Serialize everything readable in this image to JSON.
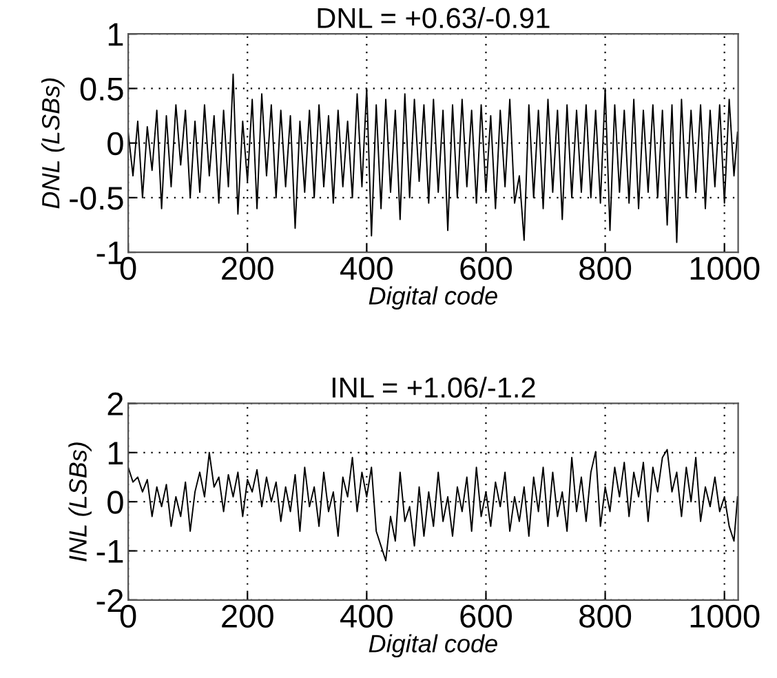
{
  "chart_data": [
    {
      "type": "line",
      "title": "DNL = +0.63/-0.91",
      "xlabel": "Digital code",
      "ylabel": "DNL (LSBs)",
      "xlim": [
        0,
        1023
      ],
      "xticks": [
        0,
        200,
        400,
        600,
        800,
        1000
      ],
      "ylim": [
        -1,
        1
      ],
      "yticks": [
        -1,
        -0.5,
        0,
        0.5,
        1
      ],
      "grid": true,
      "line_style": "solid",
      "marker": "none",
      "series": [
        {
          "color": "#000000",
          "x": [
            0,
            8,
            16,
            24,
            32,
            40,
            48,
            56,
            64,
            72,
            80,
            88,
            96,
            104,
            112,
            120,
            128,
            136,
            144,
            152,
            160,
            168,
            176,
            184,
            192,
            200,
            208,
            216,
            224,
            232,
            240,
            248,
            256,
            264,
            272,
            280,
            288,
            296,
            304,
            312,
            320,
            328,
            336,
            344,
            352,
            360,
            368,
            376,
            384,
            392,
            400,
            408,
            416,
            424,
            432,
            440,
            448,
            456,
            464,
            472,
            480,
            488,
            496,
            504,
            512,
            520,
            528,
            536,
            544,
            552,
            560,
            568,
            576,
            584,
            592,
            600,
            608,
            616,
            624,
            632,
            640,
            648,
            656,
            664,
            672,
            680,
            688,
            696,
            704,
            712,
            720,
            728,
            736,
            744,
            752,
            760,
            768,
            776,
            784,
            792,
            800,
            808,
            816,
            824,
            832,
            840,
            848,
            856,
            864,
            872,
            880,
            888,
            896,
            904,
            912,
            920,
            928,
            936,
            944,
            952,
            960,
            968,
            976,
            984,
            992,
            1000,
            1008,
            1016,
            1022
          ],
          "values": [
            0.1,
            -0.3,
            0.2,
            -0.5,
            0.15,
            -0.25,
            0.3,
            -0.6,
            0.25,
            -0.4,
            0.35,
            -0.2,
            0.3,
            -0.5,
            0.2,
            -0.45,
            0.35,
            -0.3,
            0.25,
            -0.55,
            0.3,
            -0.4,
            0.63,
            -0.65,
            0.2,
            -0.35,
            0.4,
            -0.6,
            0.45,
            -0.3,
            0.35,
            -0.5,
            0.3,
            -0.4,
            0.25,
            -0.78,
            0.2,
            -0.45,
            0.3,
            -0.5,
            0.35,
            -0.4,
            0.25,
            -0.55,
            0.3,
            -0.4,
            0.2,
            -0.5,
            0.45,
            -0.4,
            0.5,
            -0.85,
            0.35,
            -0.6,
            0.4,
            -0.45,
            0.3,
            -0.7,
            0.45,
            -0.5,
            0.4,
            -0.35,
            0.35,
            -0.55,
            0.4,
            -0.45,
            0.3,
            -0.8,
            0.35,
            -0.5,
            0.4,
            -0.4,
            0.3,
            -0.55,
            0.35,
            -0.45,
            0.25,
            -0.6,
            0.3,
            -0.4,
            0.4,
            -0.55,
            -0.3,
            -0.89,
            0.35,
            -0.5,
            0.3,
            -0.6,
            0.4,
            -0.45,
            0.3,
            -0.7,
            0.35,
            -0.5,
            0.3,
            -0.45,
            0.35,
            -0.5,
            0.3,
            -0.55,
            0.5,
            -0.8,
            0.35,
            -0.45,
            0.3,
            -0.55,
            0.4,
            -0.6,
            0.3,
            -0.45,
            0.35,
            -0.5,
            0.3,
            -0.75,
            0.35,
            -0.91,
            0.4,
            -0.5,
            0.3,
            -0.45,
            0.35,
            -0.6,
            0.3,
            -0.4,
            0.35,
            -0.55,
            0.4,
            -0.3,
            0.1
          ]
        }
      ]
    },
    {
      "type": "line",
      "title": "INL = +1.06/-1.2",
      "xlabel": "Digital code",
      "ylabel": "INL (LSBs)",
      "xlim": [
        0,
        1023
      ],
      "xticks": [
        0,
        200,
        400,
        600,
        800,
        1000
      ],
      "ylim": [
        -2,
        2
      ],
      "yticks": [
        -2,
        -1,
        0,
        1,
        2
      ],
      "grid": true,
      "line_style": "solid",
      "marker": "none",
      "series": [
        {
          "color": "#000000",
          "x": [
            0,
            8,
            16,
            24,
            32,
            40,
            48,
            56,
            64,
            72,
            80,
            88,
            96,
            104,
            112,
            120,
            128,
            136,
            144,
            152,
            160,
            168,
            176,
            184,
            192,
            200,
            208,
            216,
            224,
            232,
            240,
            248,
            256,
            264,
            272,
            280,
            288,
            296,
            304,
            312,
            320,
            328,
            336,
            344,
            352,
            360,
            368,
            376,
            384,
            392,
            400,
            408,
            416,
            424,
            432,
            440,
            448,
            456,
            464,
            472,
            480,
            488,
            496,
            504,
            512,
            520,
            528,
            536,
            544,
            552,
            560,
            568,
            576,
            584,
            592,
            600,
            608,
            616,
            624,
            632,
            640,
            648,
            656,
            664,
            672,
            680,
            688,
            696,
            704,
            712,
            720,
            728,
            736,
            744,
            752,
            760,
            768,
            776,
            784,
            792,
            800,
            808,
            816,
            824,
            832,
            840,
            848,
            856,
            864,
            872,
            880,
            888,
            896,
            904,
            912,
            920,
            928,
            936,
            944,
            952,
            960,
            968,
            976,
            984,
            992,
            1000,
            1008,
            1016,
            1022
          ],
          "values": [
            0.7,
            0.4,
            0.5,
            0.2,
            0.45,
            -0.3,
            0.3,
            -0.1,
            0.35,
            -0.5,
            0.1,
            -0.3,
            0.4,
            -0.6,
            0.2,
            0.6,
            0.1,
            1.0,
            0.3,
            0.5,
            -0.2,
            0.55,
            0.1,
            0.6,
            -0.3,
            0.45,
            0.2,
            0.65,
            -0.1,
            0.5,
            0.0,
            0.4,
            -0.4,
            0.3,
            -0.2,
            0.55,
            -0.6,
            0.7,
            -0.1,
            0.3,
            -0.5,
            0.6,
            -0.2,
            0.2,
            -0.7,
            0.5,
            0.1,
            0.9,
            -0.2,
            0.6,
            0.1,
            0.7,
            -0.6,
            -0.9,
            -1.2,
            -0.3,
            -0.8,
            0.6,
            -0.4,
            -0.1,
            -0.9,
            0.3,
            -0.7,
            0.2,
            -0.5,
            0.6,
            -0.4,
            0.1,
            -0.7,
            0.3,
            -0.2,
            0.5,
            -0.6,
            0.7,
            -0.3,
            0.2,
            -0.5,
            0.4,
            -0.1,
            0.6,
            -0.6,
            0.1,
            -0.4,
            0.3,
            -0.7,
            0.5,
            -0.2,
            0.7,
            -0.5,
            0.6,
            -0.3,
            0.2,
            -0.6,
            0.9,
            -0.2,
            0.5,
            -0.4,
            0.6,
            1.02,
            -0.5,
            0.3,
            -0.2,
            0.7,
            0.1,
            0.8,
            -0.3,
            0.6,
            0.1,
            0.8,
            -0.4,
            0.7,
            0.2,
            0.9,
            1.06,
            0.2,
            0.6,
            -0.3,
            0.7,
            0.0,
            0.9,
            -0.4,
            0.3,
            -0.1,
            0.5,
            -0.2,
            0.1,
            -0.5,
            -0.8,
            0.1
          ]
        }
      ]
    }
  ]
}
